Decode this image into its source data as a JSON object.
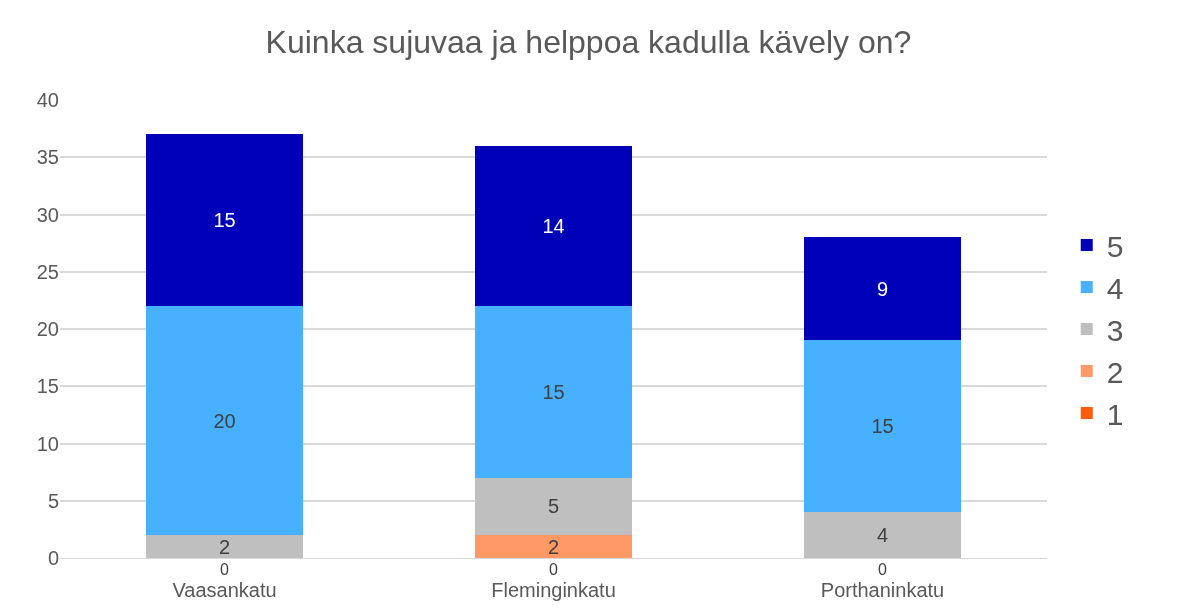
{
  "chart_data": {
    "type": "bar",
    "title": "Kuinka sujuvaa ja helppoa kadulla kävely on?",
    "categories": [
      "Vaasankatu",
      "Fleminginkatu",
      "Porthaninkatu"
    ],
    "stacked": true,
    "grid": "y",
    "legend": "right",
    "ylim": [
      0,
      40
    ],
    "yticks": [
      0,
      5,
      10,
      15,
      20,
      25,
      30,
      35,
      40
    ],
    "annotations": [
      {
        "text": "0",
        "x": "Vaasankatu",
        "y": 0
      },
      {
        "text": "0",
        "x": "Fleminginkatu",
        "y": 0
      },
      {
        "text": "0",
        "x": "Porthaninkatu",
        "y": 0
      }
    ],
    "series": [
      {
        "name": "1",
        "color": "#ff5b0f",
        "values": [
          0,
          0,
          0
        ],
        "value_labels": [
          null,
          null,
          null
        ]
      },
      {
        "name": "2",
        "color": "#ff9966",
        "values": [
          0,
          2,
          0
        ],
        "value_labels": [
          null,
          "2",
          null
        ]
      },
      {
        "name": "3",
        "color": "#bfbfbf",
        "values": [
          2,
          5,
          4
        ],
        "value_labels": [
          "2",
          "5",
          "4"
        ]
      },
      {
        "name": "4",
        "color": "#47b0ff",
        "values": [
          20,
          15,
          15
        ],
        "value_labels": [
          "20",
          "15",
          "15"
        ]
      },
      {
        "name": "5",
        "color": "#0000b8",
        "values": [
          15,
          14,
          9
        ],
        "value_labels": [
          "15",
          "14",
          "9"
        ]
      }
    ]
  }
}
